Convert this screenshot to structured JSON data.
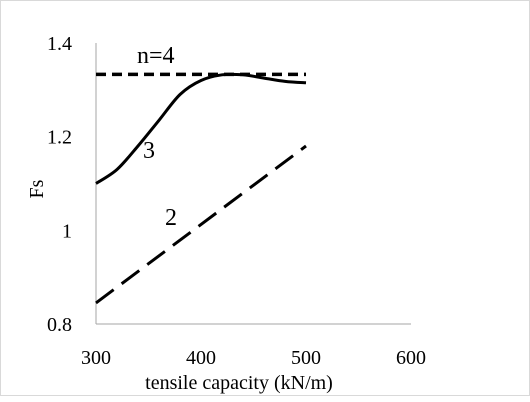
{
  "chart_data": {
    "type": "line",
    "title": "",
    "xlabel": "tensile capacity (kN/m)",
    "ylabel": "Fs",
    "xlim": [
      300,
      600
    ],
    "ylim": [
      0.8,
      1.4
    ],
    "x_ticks": [
      "300",
      "400",
      "500",
      "600"
    ],
    "y_ticks": [
      "0.8",
      "1",
      "1.2",
      "1.4"
    ],
    "x_tick_values": [
      300,
      400,
      500,
      600
    ],
    "y_tick_values": [
      0.8,
      1.0,
      1.2,
      1.4
    ],
    "grid": false,
    "legend": "none",
    "series": [
      {
        "label": "n=4",
        "style": "short-dash",
        "color": "#000000",
        "x": [
          300,
          500
        ],
        "y": [
          1.333,
          1.333
        ]
      },
      {
        "label": "3",
        "style": "solid",
        "color": "#000000",
        "x": [
          300,
          320,
          340,
          360,
          380,
          400,
          420,
          440,
          460,
          480,
          500
        ],
        "y": [
          1.1,
          1.13,
          1.18,
          1.235,
          1.29,
          1.32,
          1.332,
          1.332,
          1.325,
          1.318,
          1.315
        ]
      },
      {
        "label": "2",
        "style": "long-dash",
        "color": "#000000",
        "x": [
          300,
          500
        ],
        "y": [
          0.845,
          1.18
        ]
      }
    ]
  }
}
